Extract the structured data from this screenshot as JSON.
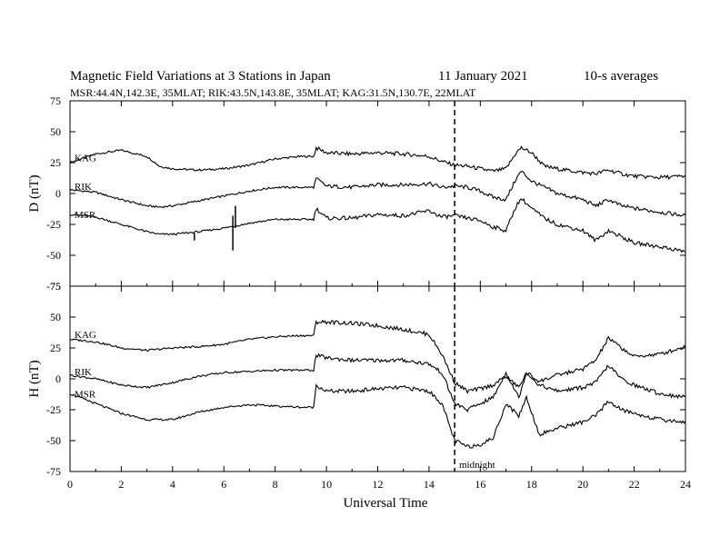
{
  "title": "Magnetic Field Variations at 3 Stations in Japan",
  "date": "11 January 2021",
  "averaging": "10-s averages",
  "subtitle": "MSR:44.4N,142.3E, 35MLAT;  RIK:43.5N,143.8E, 35MLAT;  KAG:31.5N,130.7E, 22MLAT",
  "xlabel": "Universal Time",
  "midnight_label": "midnight",
  "colors": {
    "line": "#000000",
    "background": "#ffffff"
  },
  "chart_data": [
    {
      "type": "line",
      "panel": "top",
      "ylabel": "D (nT)",
      "xlim": [
        0,
        24
      ],
      "ylim": [
        -75,
        75
      ],
      "xticks": [
        "0",
        "2",
        "4",
        "6",
        "8",
        "10",
        "12",
        "14",
        "16",
        "18",
        "20",
        "22",
        "24"
      ],
      "yticks": [
        "75",
        "50",
        "25",
        "0",
        "-25",
        "-50",
        "-75"
      ],
      "yticks_values": [
        75,
        50,
        25,
        0,
        -25,
        -50,
        -75
      ],
      "grid": false,
      "vline_x": 15,
      "series": [
        {
          "name": "KAG",
          "x": [
            0,
            1,
            2,
            3,
            3.5,
            4,
            5,
            6,
            7,
            8,
            9,
            9.5,
            9.6,
            10,
            11,
            12,
            13,
            14,
            14.5,
            15,
            15.5,
            16,
            16.5,
            17,
            17.4,
            17.6,
            18,
            18.5,
            19,
            20,
            20.5,
            21,
            21.5,
            22,
            23,
            24
          ],
          "y": [
            25,
            32,
            35,
            30,
            22,
            20,
            19,
            20,
            23,
            28,
            30,
            30,
            37,
            33,
            32,
            33,
            32,
            30,
            26,
            23,
            22,
            20,
            18,
            20,
            33,
            37,
            33,
            22,
            20,
            17,
            16,
            19,
            16,
            14,
            13,
            14
          ]
        },
        {
          "name": "RIK",
          "x": [
            0,
            1,
            2,
            3,
            3.5,
            4,
            5,
            6,
            7,
            8,
            9,
            9.5,
            9.6,
            10,
            11,
            12,
            13,
            14,
            14.5,
            15,
            15.5,
            16,
            16.5,
            17,
            17.4,
            17.6,
            18,
            18.5,
            19,
            20,
            20.5,
            21,
            21.5,
            22,
            23,
            24
          ],
          "y": [
            3,
            1,
            -5,
            -10,
            -11,
            -10,
            -6,
            -2,
            2,
            5,
            5,
            5,
            12,
            6,
            5,
            7,
            7,
            8,
            5,
            6,
            5,
            2,
            -3,
            -5,
            12,
            18,
            10,
            5,
            0,
            -5,
            -10,
            -5,
            -10,
            -12,
            -15,
            -18
          ]
        },
        {
          "name": "MSR",
          "x": [
            0,
            1,
            2,
            3,
            3.5,
            4,
            5,
            6,
            7,
            8,
            9,
            9.5,
            9.6,
            10,
            11,
            12,
            13,
            14,
            14.5,
            15,
            15.5,
            16,
            16.5,
            17,
            17.4,
            17.6,
            18,
            18.5,
            19,
            20,
            20.5,
            21,
            21.5,
            22,
            23,
            24
          ],
          "y": [
            -17,
            -19,
            -25,
            -31,
            -33,
            -33,
            -31,
            -28,
            -24,
            -21,
            -21,
            -21,
            -12,
            -20,
            -20,
            -17,
            -18,
            -14,
            -19,
            -18,
            -20,
            -22,
            -27,
            -30,
            -10,
            -4,
            -12,
            -20,
            -25,
            -30,
            -38,
            -30,
            -35,
            -40,
            -43,
            -47
          ]
        }
      ],
      "spikes": [
        {
          "x": 4.85,
          "y": [
            -32,
            -38
          ]
        },
        {
          "x": 6.35,
          "y": [
            -18,
            -46
          ]
        },
        {
          "x": 6.45,
          "y": [
            -10,
            -28
          ]
        }
      ]
    },
    {
      "type": "line",
      "panel": "bottom",
      "ylabel": "H (nT)",
      "xlim": [
        0,
        24
      ],
      "ylim": [
        -75,
        75
      ],
      "xticks": [
        "0",
        "2",
        "4",
        "6",
        "8",
        "10",
        "12",
        "14",
        "16",
        "18",
        "20",
        "22",
        "24"
      ],
      "yticks": [
        "75",
        "50",
        "25",
        "0",
        "-25",
        "-50",
        "-75"
      ],
      "yticks_values": [
        75,
        50,
        25,
        0,
        -25,
        -50,
        -75
      ],
      "grid": false,
      "vline_x": 15,
      "series": [
        {
          "name": "KAG",
          "x": [
            0,
            1,
            2,
            3,
            4,
            5,
            6,
            7,
            8,
            9,
            9.5,
            9.6,
            10,
            11,
            12,
            13,
            14,
            14.5,
            15,
            15.5,
            16,
            16.5,
            17,
            17.5,
            17.8,
            18.3,
            19,
            20,
            20.5,
            21,
            21.5,
            22,
            23,
            24
          ],
          "y": [
            32,
            30,
            25,
            23,
            25,
            26,
            28,
            32,
            34,
            35,
            35,
            46,
            46,
            45,
            43,
            40,
            36,
            20,
            -3,
            -10,
            -8,
            -5,
            2,
            -7,
            5,
            -2,
            3,
            8,
            15,
            33,
            25,
            18,
            20,
            26
          ]
        },
        {
          "name": "RIK",
          "x": [
            0,
            1,
            2,
            3,
            4,
            5,
            6,
            7,
            8,
            9,
            9.5,
            9.6,
            10,
            11,
            12,
            13,
            14,
            14.5,
            15,
            15.5,
            16,
            16.5,
            17,
            17.5,
            17.8,
            18.3,
            19,
            20,
            20.5,
            21,
            21.5,
            22,
            23,
            24
          ],
          "y": [
            3,
            0,
            -5,
            -7,
            -3,
            2,
            5,
            6,
            7,
            7,
            7,
            19,
            17,
            15,
            15,
            15,
            12,
            5,
            -20,
            -25,
            -20,
            -15,
            5,
            -15,
            5,
            -5,
            -10,
            -7,
            -3,
            11,
            0,
            -5,
            -12,
            -15
          ]
        },
        {
          "name": "MSR",
          "x": [
            0,
            1,
            2,
            3,
            4,
            5,
            6,
            7,
            8,
            9,
            9.5,
            9.6,
            10,
            11,
            12,
            13,
            14,
            14.5,
            15,
            15.5,
            16,
            16.5,
            17,
            17.5,
            17.8,
            18.3,
            19,
            20,
            20.5,
            21,
            21.5,
            22,
            23,
            24
          ],
          "y": [
            -12,
            -20,
            -28,
            -33,
            -33,
            -27,
            -23,
            -21,
            -22,
            -23,
            -23,
            -5,
            -10,
            -10,
            -8,
            -7,
            -10,
            -20,
            -50,
            -55,
            -53,
            -48,
            -20,
            -30,
            -15,
            -45,
            -40,
            -35,
            -30,
            -18,
            -25,
            -28,
            -33,
            -35
          ]
        }
      ]
    }
  ]
}
